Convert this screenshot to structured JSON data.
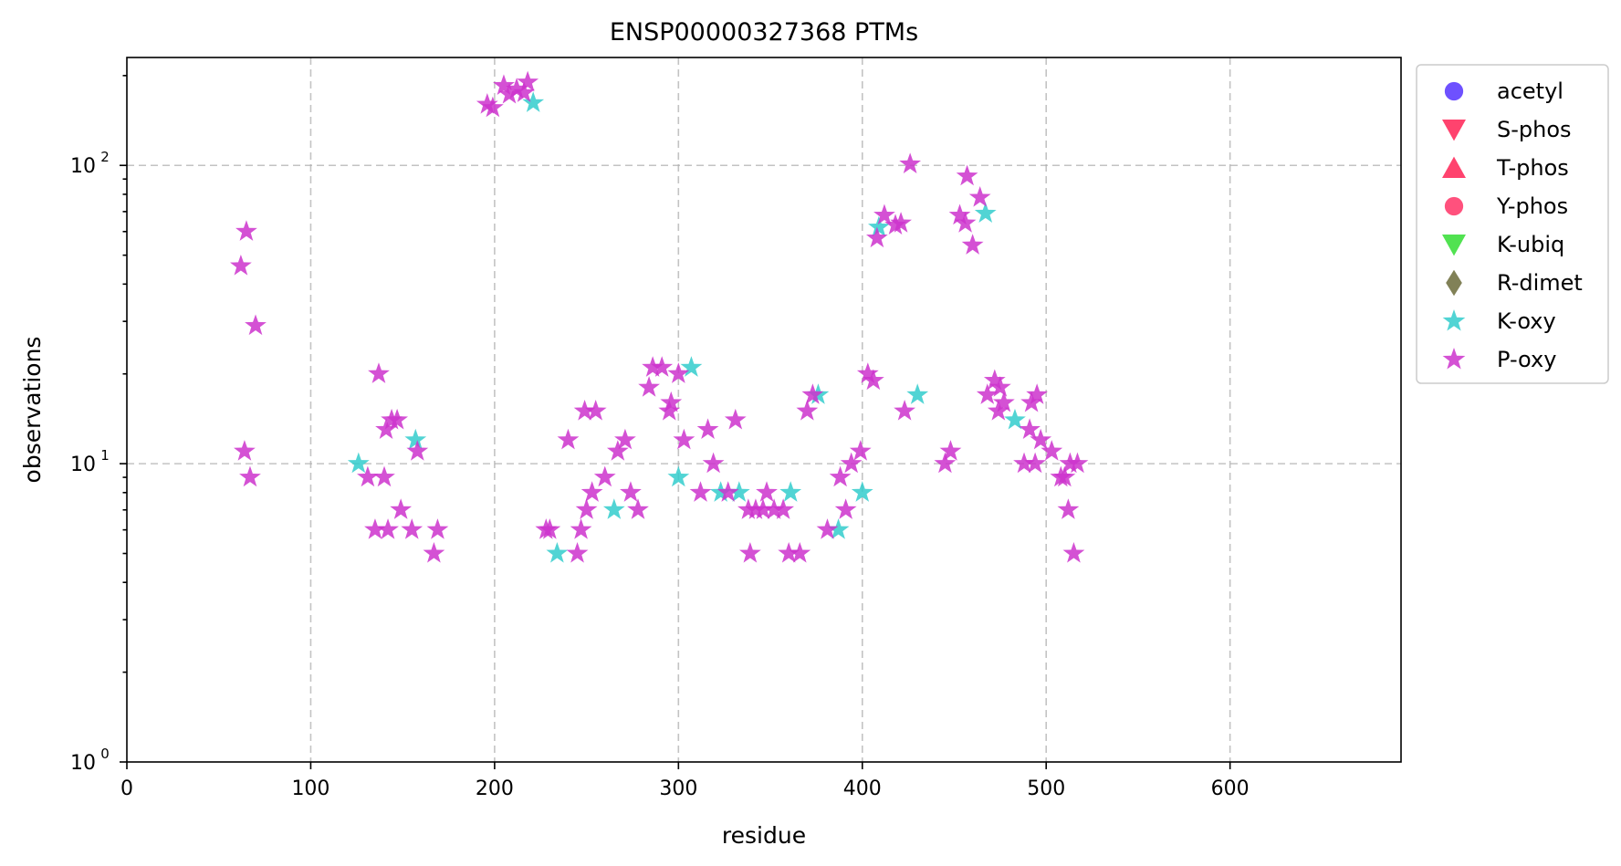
{
  "chart_data": {
    "type": "scatter",
    "title": "ENSP00000327368 PTMs",
    "xlabel": "residue",
    "ylabel": "observations",
    "xlim": [
      0,
      693
    ],
    "ylim": [
      1,
      230
    ],
    "yscale": "log",
    "grid": true,
    "legend_position": "outside-right-top",
    "x_ticks": [
      "0",
      "100",
      "200",
      "300",
      "400",
      "500",
      "600"
    ],
    "y_ticks": [
      {
        "value": 1,
        "base": "10",
        "exp": "0"
      },
      {
        "value": 10,
        "base": "10",
        "exp": "1"
      },
      {
        "value": 100,
        "base": "10",
        "exp": "2"
      }
    ],
    "series": [
      {
        "name": "acetyl",
        "marker": "circle",
        "color": "#5533ff",
        "points": []
      },
      {
        "name": "S-phos",
        "marker": "triangle-down",
        "color": "#ff2255",
        "points": []
      },
      {
        "name": "T-phos",
        "marker": "triangle-up",
        "color": "#ff2255",
        "points": []
      },
      {
        "name": "Y-phos",
        "marker": "circle",
        "color": "#ff3366",
        "points": []
      },
      {
        "name": "K-ubiq",
        "marker": "triangle-down",
        "color": "#33dd33",
        "points": []
      },
      {
        "name": "R-dimet",
        "marker": "diamond",
        "color": "#6b6b3a",
        "points": []
      },
      {
        "name": "K-oxy",
        "marker": "star",
        "color": "#33cccc",
        "points": [
          [
            126,
            10
          ],
          [
            157,
            12
          ],
          [
            221,
            162
          ],
          [
            234,
            5
          ],
          [
            265,
            7
          ],
          [
            300,
            9
          ],
          [
            307,
            21
          ],
          [
            323,
            8
          ],
          [
            333,
            8
          ],
          [
            361,
            8
          ],
          [
            376,
            17
          ],
          [
            387,
            6
          ],
          [
            400,
            8
          ],
          [
            409,
            62
          ],
          [
            430,
            17
          ],
          [
            467,
            69
          ],
          [
            483,
            14
          ]
        ]
      },
      {
        "name": "P-oxy",
        "marker": "star",
        "color": "#cc33cc",
        "points": [
          [
            62,
            46
          ],
          [
            64,
            11
          ],
          [
            65,
            60
          ],
          [
            67,
            9
          ],
          [
            70,
            29
          ],
          [
            131,
            9
          ],
          [
            135,
            6
          ],
          [
            137,
            20
          ],
          [
            140,
            9
          ],
          [
            141,
            13
          ],
          [
            142,
            6
          ],
          [
            144,
            14
          ],
          [
            147,
            14
          ],
          [
            149,
            7
          ],
          [
            155,
            6
          ],
          [
            158,
            11
          ],
          [
            167,
            5
          ],
          [
            169,
            6
          ],
          [
            196,
            160
          ],
          [
            199,
            156
          ],
          [
            205,
            185
          ],
          [
            208,
            173
          ],
          [
            212,
            180
          ],
          [
            216,
            175
          ],
          [
            218,
            190
          ],
          [
            228,
            6
          ],
          [
            230,
            6
          ],
          [
            240,
            12
          ],
          [
            245,
            5
          ],
          [
            247,
            6
          ],
          [
            249,
            15
          ],
          [
            250,
            7
          ],
          [
            253,
            8
          ],
          [
            255,
            15
          ],
          [
            260,
            9
          ],
          [
            267,
            11
          ],
          [
            271,
            12
          ],
          [
            274,
            8
          ],
          [
            278,
            7
          ],
          [
            284,
            18
          ],
          [
            286,
            21
          ],
          [
            291,
            21
          ],
          [
            295,
            15
          ],
          [
            296,
            16
          ],
          [
            300,
            20
          ],
          [
            303,
            12
          ],
          [
            312,
            8
          ],
          [
            316,
            13
          ],
          [
            319,
            10
          ],
          [
            327,
            8
          ],
          [
            331,
            14
          ],
          [
            338,
            7
          ],
          [
            339,
            5
          ],
          [
            342,
            7
          ],
          [
            346,
            7
          ],
          [
            348,
            8
          ],
          [
            352,
            7
          ],
          [
            357,
            7
          ],
          [
            360,
            5
          ],
          [
            366,
            5
          ],
          [
            370,
            15
          ],
          [
            373,
            17
          ],
          [
            381,
            6
          ],
          [
            388,
            9
          ],
          [
            391,
            7
          ],
          [
            394,
            10
          ],
          [
            399,
            11
          ],
          [
            403,
            20
          ],
          [
            406,
            19
          ],
          [
            408,
            57
          ],
          [
            412,
            68
          ],
          [
            418,
            63
          ],
          [
            421,
            64
          ],
          [
            423,
            15
          ],
          [
            426,
            101
          ],
          [
            445,
            10
          ],
          [
            448,
            11
          ],
          [
            453,
            68
          ],
          [
            456,
            64
          ],
          [
            457,
            92
          ],
          [
            460,
            54
          ],
          [
            464,
            78
          ],
          [
            468,
            17
          ],
          [
            472,
            19
          ],
          [
            474,
            15
          ],
          [
            475,
            18
          ],
          [
            477,
            16
          ],
          [
            488,
            10
          ],
          [
            491,
            13
          ],
          [
            492,
            16
          ],
          [
            494,
            10
          ],
          [
            495,
            17
          ],
          [
            497,
            12
          ],
          [
            503,
            11
          ],
          [
            508,
            9
          ],
          [
            510,
            9
          ],
          [
            512,
            7
          ],
          [
            513,
            10
          ],
          [
            515,
            5
          ],
          [
            517,
            10
          ]
        ]
      }
    ]
  }
}
